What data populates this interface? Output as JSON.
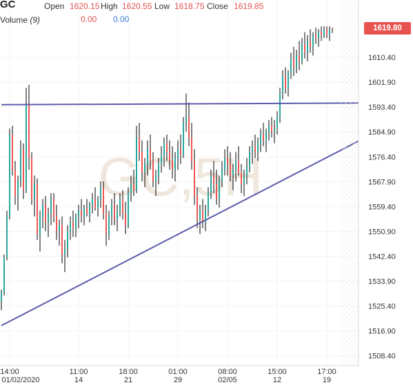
{
  "header": {
    "symbol": "GC",
    "open_label": "Open",
    "open": "1620.15",
    "high_label": "High",
    "high": "1620.55",
    "low_label": "Low",
    "low": "1618.75",
    "close_label": "Close",
    "close": "1619.85",
    "volume_label": "Volume",
    "volume_param": "(9)",
    "volume_val1": "0.00",
    "volume_val2": "0.00"
  },
  "watermark": "GC,5H",
  "current_price_label": "1619.80",
  "colors": {
    "up": "#26a69a",
    "down": "#ef5350",
    "watermark": "#efe6dc",
    "trendline": "#5b5baa",
    "price_tag": "#e8524f"
  },
  "chart_data": {
    "type": "candlestick",
    "interval": "5H",
    "ylim": [
      1505,
      1630
    ],
    "y_ticks": [
      1508.4,
      1516.9,
      1525.4,
      1533.9,
      1542.4,
      1550.9,
      1559.4,
      1567.9,
      1576.4,
      1584.9,
      1593.4,
      1601.9,
      1610.4
    ],
    "y_tick_labels": [
      "1508.40",
      "1516.90",
      "1525.40",
      "1533.90",
      "1542.40",
      "1550.90",
      "1559.40",
      "1567.90",
      "1576.40",
      "1584.90",
      "1593.40",
      "1601.90",
      "1610.40"
    ],
    "x_ticks": [
      {
        "index": 3,
        "time": "14:00",
        "date": "01/02/2020"
      },
      {
        "index": 28,
        "time": "11:00",
        "date": "14"
      },
      {
        "index": 46,
        "time": "18:00",
        "date": "21"
      },
      {
        "index": 64,
        "time": "01:00",
        "date": "29"
      },
      {
        "index": 82,
        "time": "08:00",
        "date": "02/05"
      },
      {
        "index": 100,
        "time": "15:00",
        "date": "12"
      },
      {
        "index": 118,
        "time": "17:00",
        "date": "19"
      }
    ],
    "n_bars": 121,
    "current_price": 1619.8,
    "trendlines": [
      {
        "name": "resistance",
        "from": {
          "index": 0,
          "price": 1594.2
        },
        "to": {
          "index": 132,
          "price": 1594.8
        }
      },
      {
        "name": "support",
        "from": {
          "index": 0,
          "price": 1518.7
        },
        "to": {
          "index": 132,
          "price": 1583.0
        }
      }
    ],
    "candles": [
      [
        1527,
        1531,
        1524,
        1530
      ],
      [
        1530,
        1543,
        1529,
        1542
      ],
      [
        1542,
        1558,
        1541,
        1556
      ],
      [
        1556,
        1586,
        1555,
        1584
      ],
      [
        1584,
        1587,
        1570,
        1572
      ],
      [
        1572,
        1575,
        1560,
        1563
      ],
      [
        1563,
        1570,
        1558,
        1568
      ],
      [
        1568,
        1582,
        1566,
        1579
      ],
      [
        1579,
        1581,
        1562,
        1565
      ],
      [
        1565,
        1600,
        1564,
        1594
      ],
      [
        1594,
        1601,
        1572,
        1576
      ],
      [
        1576,
        1578,
        1560,
        1562
      ],
      [
        1562,
        1570,
        1556,
        1567
      ],
      [
        1567,
        1569,
        1548,
        1550
      ],
      [
        1550,
        1558,
        1544,
        1556
      ],
      [
        1556,
        1562,
        1552,
        1560
      ],
      [
        1560,
        1563,
        1551,
        1554
      ],
      [
        1554,
        1559,
        1549,
        1557
      ],
      [
        1557,
        1564,
        1553,
        1562
      ],
      [
        1562,
        1564,
        1554,
        1556
      ],
      [
        1556,
        1560,
        1548,
        1551
      ],
      [
        1551,
        1555,
        1546,
        1553
      ],
      [
        1553,
        1556,
        1540,
        1543
      ],
      [
        1543,
        1548,
        1537,
        1545
      ],
      [
        1545,
        1553,
        1542,
        1551
      ],
      [
        1551,
        1556,
        1548,
        1554
      ],
      [
        1554,
        1558,
        1549,
        1552
      ],
      [
        1552,
        1557,
        1549,
        1556
      ],
      [
        1556,
        1560,
        1552,
        1558
      ],
      [
        1558,
        1562,
        1554,
        1556
      ],
      [
        1556,
        1560,
        1553,
        1559
      ],
      [
        1559,
        1562,
        1556,
        1557
      ],
      [
        1557,
        1561,
        1554,
        1560
      ],
      [
        1560,
        1564,
        1557,
        1562
      ],
      [
        1562,
        1566,
        1558,
        1559
      ],
      [
        1559,
        1563,
        1556,
        1562
      ],
      [
        1562,
        1568,
        1559,
        1566
      ],
      [
        1566,
        1568,
        1555,
        1557
      ],
      [
        1557,
        1560,
        1546,
        1550
      ],
      [
        1550,
        1558,
        1548,
        1556
      ],
      [
        1556,
        1562,
        1553,
        1560
      ],
      [
        1560,
        1564,
        1553,
        1555
      ],
      [
        1555,
        1560,
        1551,
        1558
      ],
      [
        1558,
        1564,
        1556,
        1562
      ],
      [
        1562,
        1565,
        1555,
        1557
      ],
      [
        1557,
        1561,
        1550,
        1553
      ],
      [
        1553,
        1566,
        1552,
        1564
      ],
      [
        1564,
        1570,
        1561,
        1567
      ],
      [
        1567,
        1572,
        1563,
        1565
      ],
      [
        1565,
        1587,
        1564,
        1583
      ],
      [
        1583,
        1588,
        1575,
        1578
      ],
      [
        1578,
        1582,
        1568,
        1571
      ],
      [
        1571,
        1576,
        1566,
        1574
      ],
      [
        1574,
        1582,
        1570,
        1579
      ],
      [
        1579,
        1584,
        1572,
        1575
      ],
      [
        1575,
        1578,
        1566,
        1568
      ],
      [
        1568,
        1572,
        1563,
        1570
      ],
      [
        1570,
        1576,
        1567,
        1574
      ],
      [
        1574,
        1580,
        1571,
        1577
      ],
      [
        1577,
        1583,
        1573,
        1581
      ],
      [
        1581,
        1584,
        1575,
        1578
      ],
      [
        1578,
        1582,
        1572,
        1575
      ],
      [
        1575,
        1580,
        1569,
        1572
      ],
      [
        1572,
        1578,
        1568,
        1576
      ],
      [
        1576,
        1582,
        1572,
        1579
      ],
      [
        1579,
        1584,
        1574,
        1577
      ],
      [
        1577,
        1590,
        1576,
        1588
      ],
      [
        1588,
        1598,
        1585,
        1590
      ],
      [
        1590,
        1595,
        1580,
        1583
      ],
      [
        1583,
        1588,
        1572,
        1575
      ],
      [
        1575,
        1579,
        1560,
        1563
      ],
      [
        1563,
        1566,
        1552,
        1555
      ],
      [
        1555,
        1560,
        1550,
        1558
      ],
      [
        1558,
        1562,
        1552,
        1554
      ],
      [
        1554,
        1560,
        1551,
        1558
      ],
      [
        1558,
        1566,
        1556,
        1564
      ],
      [
        1564,
        1572,
        1562,
        1570
      ],
      [
        1570,
        1575,
        1564,
        1567
      ],
      [
        1567,
        1572,
        1560,
        1562
      ],
      [
        1562,
        1570,
        1559,
        1568
      ],
      [
        1568,
        1575,
        1566,
        1572
      ],
      [
        1572,
        1579,
        1570,
        1576
      ],
      [
        1576,
        1580,
        1570,
        1574
      ],
      [
        1574,
        1578,
        1568,
        1570
      ],
      [
        1570,
        1574,
        1565,
        1572
      ],
      [
        1572,
        1578,
        1568,
        1575
      ],
      [
        1575,
        1580,
        1570,
        1571
      ],
      [
        1571,
        1574,
        1564,
        1567
      ],
      [
        1567,
        1572,
        1563,
        1570
      ],
      [
        1570,
        1576,
        1567,
        1573
      ],
      [
        1573,
        1580,
        1571,
        1578
      ],
      [
        1578,
        1582,
        1574,
        1580
      ],
      [
        1580,
        1584,
        1576,
        1578
      ],
      [
        1578,
        1583,
        1575,
        1581
      ],
      [
        1581,
        1586,
        1578,
        1584
      ],
      [
        1584,
        1588,
        1580,
        1582
      ],
      [
        1582,
        1586,
        1578,
        1585
      ],
      [
        1585,
        1589,
        1582,
        1587
      ],
      [
        1587,
        1590,
        1583,
        1585
      ],
      [
        1585,
        1589,
        1581,
        1586
      ],
      [
        1586,
        1592,
        1584,
        1590
      ],
      [
        1590,
        1600,
        1588,
        1598
      ],
      [
        1598,
        1606,
        1596,
        1604
      ],
      [
        1604,
        1607,
        1598,
        1600
      ],
      [
        1600,
        1606,
        1597,
        1605
      ],
      [
        1605,
        1612,
        1603,
        1610
      ],
      [
        1610,
        1614,
        1604,
        1607
      ],
      [
        1607,
        1613,
        1605,
        1611
      ],
      [
        1611,
        1616,
        1606,
        1609
      ],
      [
        1609,
        1617,
        1608,
        1615
      ],
      [
        1615,
        1619,
        1610,
        1612
      ],
      [
        1612,
        1618,
        1609,
        1616
      ],
      [
        1616,
        1620,
        1612,
        1614
      ],
      [
        1614,
        1619,
        1611,
        1618
      ],
      [
        1618,
        1620.5,
        1615,
        1617
      ],
      [
        1617,
        1620,
        1614,
        1619
      ],
      [
        1619,
        1621,
        1616,
        1618
      ],
      [
        1618,
        1621,
        1617,
        1620
      ],
      [
        1620,
        1621,
        1617,
        1618
      ],
      [
        1618,
        1621,
        1616,
        1620
      ],
      [
        1620.15,
        1620.55,
        1618.75,
        1619.85
      ]
    ]
  }
}
